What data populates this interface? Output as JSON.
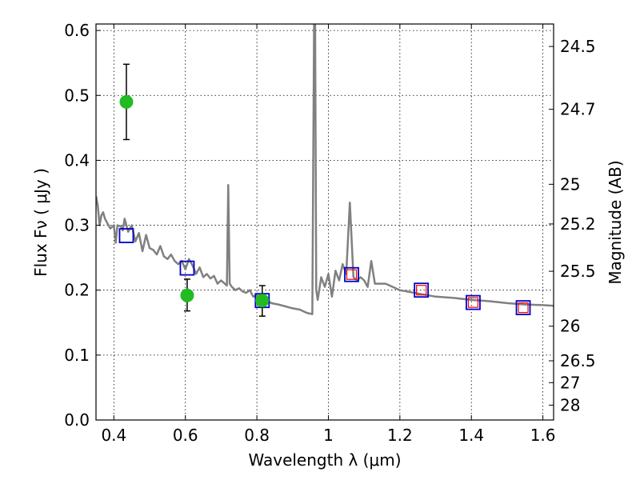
{
  "chart_data": {
    "type": "scatter",
    "title": "",
    "xlabel": "Wavelength  λ (μm)",
    "ylabel": "Flux  Fν  ( μJy )",
    "ylabel_right": "Magnitude (AB)",
    "xlim": [
      0.35,
      1.63
    ],
    "ylim": [
      0.0,
      0.61
    ],
    "grid": true,
    "x_ticks": [
      {
        "value": 0.4,
        "label": "0.4"
      },
      {
        "value": 0.6,
        "label": "0.6"
      },
      {
        "value": 0.8,
        "label": "0.8"
      },
      {
        "value": 1.0,
        "label": "1"
      },
      {
        "value": 1.2,
        "label": "1.2"
      },
      {
        "value": 1.4,
        "label": "1.4"
      },
      {
        "value": 1.6,
        "label": "1.6"
      }
    ],
    "y_ticks": [
      {
        "value": 0.0,
        "label": "0.0"
      },
      {
        "value": 0.1,
        "label": "0.1"
      },
      {
        "value": 0.2,
        "label": "0.2"
      },
      {
        "value": 0.3,
        "label": "0.3"
      },
      {
        "value": 0.4,
        "label": "0.4"
      },
      {
        "value": 0.5,
        "label": "0.5"
      },
      {
        "value": 0.6,
        "label": "0.6"
      }
    ],
    "mag_ticks": [
      {
        "flux": 0.5754,
        "label": "24.5"
      },
      {
        "flux": 0.4786,
        "label": "24.7"
      },
      {
        "flux": 0.3631,
        "label": "25"
      },
      {
        "flux": 0.302,
        "label": "25.2"
      },
      {
        "flux": 0.2291,
        "label": "25.5"
      },
      {
        "flux": 0.1445,
        "label": "26"
      },
      {
        "flux": 0.0912,
        "label": "26.5"
      },
      {
        "flux": 0.0575,
        "label": "27"
      },
      {
        "flux": 0.0229,
        "label": "28"
      }
    ],
    "series": [
      {
        "kind": "line",
        "color": "#808080",
        "x": [
          0.35,
          0.355,
          0.36,
          0.365,
          0.37,
          0.375,
          0.38,
          0.39,
          0.4,
          0.405,
          0.41,
          0.42,
          0.425,
          0.43,
          0.44,
          0.45,
          0.46,
          0.47,
          0.48,
          0.49,
          0.5,
          0.51,
          0.52,
          0.53,
          0.54,
          0.55,
          0.56,
          0.57,
          0.58,
          0.59,
          0.6,
          0.61,
          0.62,
          0.63,
          0.64,
          0.65,
          0.66,
          0.67,
          0.68,
          0.69,
          0.7,
          0.71,
          0.716,
          0.72,
          0.724,
          0.73,
          0.74,
          0.75,
          0.76,
          0.77,
          0.78,
          0.79,
          0.8,
          0.82,
          0.84,
          0.86,
          0.88,
          0.9,
          0.92,
          0.94,
          0.955,
          0.96,
          0.963,
          0.966,
          0.97,
          0.98,
          0.99,
          1.0,
          1.01,
          1.02,
          1.03,
          1.04,
          1.05,
          1.06,
          1.07,
          1.08,
          1.09,
          1.1,
          1.11,
          1.12,
          1.13,
          1.14,
          1.16,
          1.18,
          1.2,
          1.25,
          1.3,
          1.35,
          1.4,
          1.45,
          1.5,
          1.55,
          1.6,
          1.63
        ],
        "y": [
          0.345,
          0.33,
          0.3,
          0.315,
          0.32,
          0.31,
          0.305,
          0.295,
          0.3,
          0.273,
          0.3,
          0.298,
          0.292,
          0.31,
          0.29,
          0.3,
          0.275,
          0.288,
          0.26,
          0.285,
          0.265,
          0.262,
          0.255,
          0.268,
          0.252,
          0.248,
          0.255,
          0.245,
          0.24,
          0.245,
          0.232,
          0.248,
          0.238,
          0.225,
          0.235,
          0.22,
          0.225,
          0.218,
          0.222,
          0.21,
          0.215,
          0.21,
          0.207,
          0.362,
          0.21,
          0.205,
          0.2,
          0.203,
          0.198,
          0.196,
          0.2,
          0.19,
          0.192,
          0.188,
          0.18,
          0.178,
          0.175,
          0.172,
          0.17,
          0.165,
          0.163,
          0.61,
          0.61,
          0.2,
          0.185,
          0.22,
          0.205,
          0.225,
          0.19,
          0.23,
          0.215,
          0.24,
          0.225,
          0.335,
          0.22,
          0.215,
          0.22,
          0.215,
          0.205,
          0.245,
          0.21,
          0.21,
          0.21,
          0.205,
          0.2,
          0.195,
          0.19,
          0.188,
          0.185,
          0.183,
          0.18,
          0.178,
          0.177,
          0.176
        ]
      },
      {
        "kind": "squares",
        "color": "#0000cc",
        "x": [
          0.435,
          0.605,
          0.815,
          1.065,
          1.26,
          1.405,
          1.545
        ],
        "y": [
          0.284,
          0.234,
          0.184,
          0.224,
          0.2,
          0.181,
          0.173
        ]
      },
      {
        "kind": "squares",
        "color": "#ff0000",
        "x": [
          1.065,
          1.26,
          1.405,
          1.545
        ],
        "y": [
          0.224,
          0.2,
          0.181,
          0.173
        ]
      },
      {
        "kind": "points",
        "color": "#22bb22",
        "x": [
          0.435,
          0.605,
          0.815
        ],
        "y": [
          0.49,
          0.192,
          0.184
        ],
        "yerr_low": [
          0.432,
          0.168,
          0.16
        ],
        "yerr_high": [
          0.548,
          0.217,
          0.207
        ]
      }
    ]
  }
}
